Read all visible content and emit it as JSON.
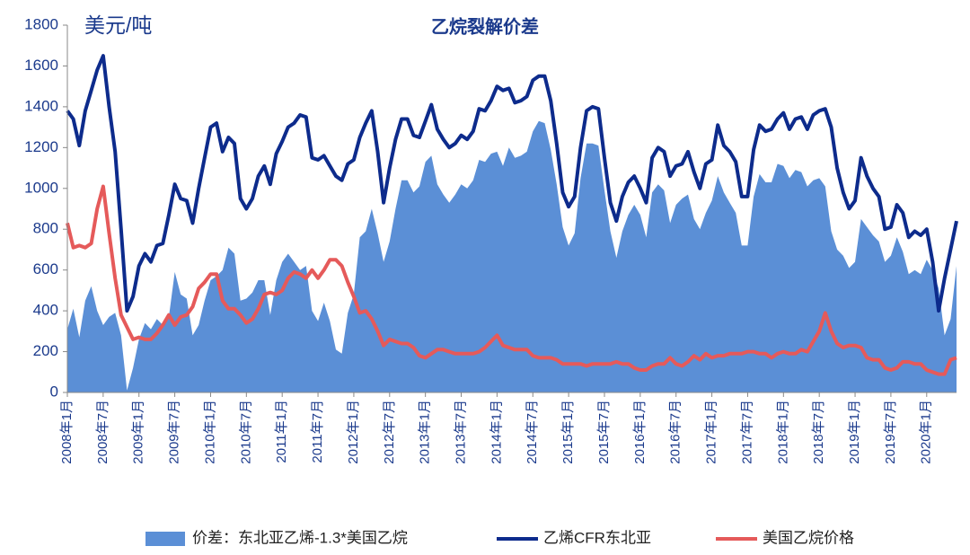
{
  "chart_data": {
    "type": "line",
    "title": "乙烷裂解价差",
    "y_label": "美元/吨",
    "categories": [
      "2008年1月",
      null,
      null,
      null,
      null,
      null,
      "2008年7月",
      null,
      null,
      null,
      null,
      null,
      "2009年1月",
      null,
      null,
      null,
      null,
      null,
      "2009年7月",
      null,
      null,
      null,
      null,
      null,
      "2010年1月",
      null,
      null,
      null,
      null,
      null,
      "2010年7月",
      null,
      null,
      null,
      null,
      null,
      "2011年1月",
      null,
      null,
      null,
      null,
      null,
      "2011年7月",
      null,
      null,
      null,
      null,
      null,
      "2012年1月",
      null,
      null,
      null,
      null,
      null,
      "2012年7月",
      null,
      null,
      null,
      null,
      null,
      "2013年1月",
      null,
      null,
      null,
      null,
      null,
      "2013年7月",
      null,
      null,
      null,
      null,
      null,
      "2014年1月",
      null,
      null,
      null,
      null,
      null,
      "2014年7月",
      null,
      null,
      null,
      null,
      null,
      "2015年1月",
      null,
      null,
      null,
      null,
      null,
      "2015年7月",
      null,
      null,
      null,
      null,
      null,
      "2016年1月",
      null,
      null,
      null,
      null,
      null,
      "2016年7月",
      null,
      null,
      null,
      null,
      null,
      "2017年1月",
      null,
      null,
      null,
      null,
      null,
      "2017年7月",
      null,
      null,
      null,
      null,
      null,
      "2018年1月",
      null,
      null,
      null,
      null,
      null,
      "2018年7月",
      null,
      null,
      null,
      null,
      null,
      "2019年1月",
      null,
      null,
      null,
      null,
      null,
      "2019年7月",
      null,
      null,
      null,
      null,
      null,
      "2020年1月",
      null,
      null,
      null,
      null,
      null
    ],
    "series": [
      {
        "name": "价差：东北亚乙烯-1.3*美国乙烷",
        "type": "area",
        "color": "#5b8fd6",
        "values": [
          310,
          410,
          270,
          450,
          520,
          400,
          330,
          370,
          390,
          280,
          10,
          120,
          260,
          340,
          310,
          360,
          330,
          370,
          590,
          480,
          460,
          280,
          330,
          450,
          550,
          570,
          600,
          710,
          680,
          450,
          460,
          490,
          550,
          550,
          380,
          550,
          640,
          680,
          640,
          600,
          620,
          400,
          350,
          440,
          350,
          210,
          190,
          390,
          480,
          760,
          790,
          900,
          780,
          640,
          740,
          900,
          1040,
          1040,
          980,
          1010,
          1130,
          1160,
          1020,
          970,
          930,
          970,
          1020,
          1000,
          1040,
          1140,
          1130,
          1170,
          1180,
          1110,
          1200,
          1150,
          1160,
          1180,
          1280,
          1330,
          1320,
          1190,
          1020,
          810,
          720,
          780,
          1050,
          1220,
          1220,
          1210,
          990,
          790,
          660,
          790,
          870,
          920,
          870,
          760,
          980,
          1020,
          990,
          830,
          920,
          950,
          970,
          850,
          800,
          880,
          940,
          1060,
          980,
          930,
          880,
          720,
          720,
          960,
          1070,
          1030,
          1030,
          1120,
          1110,
          1050,
          1090,
          1080,
          1010,
          1040,
          1050,
          1010,
          790,
          700,
          670,
          610,
          640,
          850,
          810,
          770,
          740,
          640,
          670,
          760,
          690,
          580,
          600,
          580,
          650,
          600,
          510,
          280,
          360,
          620
        ]
      },
      {
        "name": "乙烯CFR东北亚",
        "type": "line",
        "color": "#0d2b8c",
        "values": [
          1380,
          1340,
          1210,
          1380,
          1480,
          1580,
          1650,
          1400,
          1180,
          800,
          400,
          470,
          620,
          680,
          640,
          720,
          730,
          870,
          1020,
          950,
          940,
          830,
          1000,
          1150,
          1300,
          1320,
          1180,
          1250,
          1220,
          950,
          900,
          950,
          1060,
          1110,
          1020,
          1170,
          1230,
          1300,
          1320,
          1360,
          1350,
          1150,
          1140,
          1160,
          1110,
          1060,
          1040,
          1120,
          1140,
          1250,
          1320,
          1380,
          1180,
          930,
          1100,
          1240,
          1340,
          1340,
          1260,
          1250,
          1330,
          1410,
          1290,
          1240,
          1200,
          1220,
          1260,
          1240,
          1280,
          1390,
          1380,
          1430,
          1500,
          1480,
          1490,
          1420,
          1430,
          1450,
          1530,
          1550,
          1550,
          1430,
          1220,
          980,
          910,
          960,
          1200,
          1380,
          1400,
          1390,
          1150,
          930,
          840,
          960,
          1030,
          1060,
          1000,
          930,
          1150,
          1200,
          1180,
          1060,
          1110,
          1120,
          1180,
          1080,
          1000,
          1120,
          1140,
          1310,
          1210,
          1180,
          1130,
          960,
          960,
          1190,
          1310,
          1280,
          1290,
          1340,
          1370,
          1290,
          1340,
          1350,
          1290,
          1360,
          1380,
          1390,
          1300,
          1100,
          980,
          900,
          940,
          1150,
          1060,
          1000,
          960,
          800,
          810,
          920,
          880,
          760,
          790,
          770,
          800,
          640,
          400,
          560,
          700,
          840
        ]
      },
      {
        "name": "美国乙烷价格",
        "type": "line",
        "color": "#e55a5a",
        "values": [
          830,
          710,
          720,
          710,
          730,
          900,
          1010,
          780,
          560,
          380,
          320,
          260,
          270,
          260,
          260,
          290,
          330,
          380,
          330,
          370,
          380,
          420,
          510,
          540,
          580,
          580,
          450,
          410,
          410,
          380,
          340,
          360,
          410,
          480,
          490,
          480,
          500,
          560,
          590,
          580,
          560,
          600,
          560,
          600,
          650,
          650,
          620,
          540,
          470,
          390,
          400,
          360,
          300,
          230,
          260,
          250,
          240,
          240,
          220,
          180,
          170,
          190,
          210,
          210,
          200,
          190,
          190,
          190,
          190,
          200,
          220,
          250,
          280,
          230,
          220,
          210,
          210,
          210,
          180,
          170,
          170,
          170,
          160,
          140,
          140,
          140,
          140,
          130,
          140,
          140,
          140,
          140,
          150,
          140,
          140,
          120,
          110,
          110,
          130,
          140,
          140,
          170,
          140,
          130,
          150,
          180,
          160,
          190,
          170,
          180,
          180,
          190,
          190,
          190,
          200,
          200,
          190,
          190,
          170,
          190,
          200,
          190,
          190,
          210,
          200,
          250,
          300,
          390,
          300,
          240,
          220,
          230,
          230,
          220,
          170,
          160,
          160,
          120,
          110,
          120,
          150,
          150,
          140,
          140,
          110,
          100,
          90,
          90,
          160,
          170
        ]
      }
    ],
    "ylim": [
      0,
      1800
    ],
    "yticks": [
      0,
      200,
      400,
      600,
      800,
      1000,
      1200,
      1400,
      1600,
      1800
    ],
    "legend": "bottom"
  }
}
